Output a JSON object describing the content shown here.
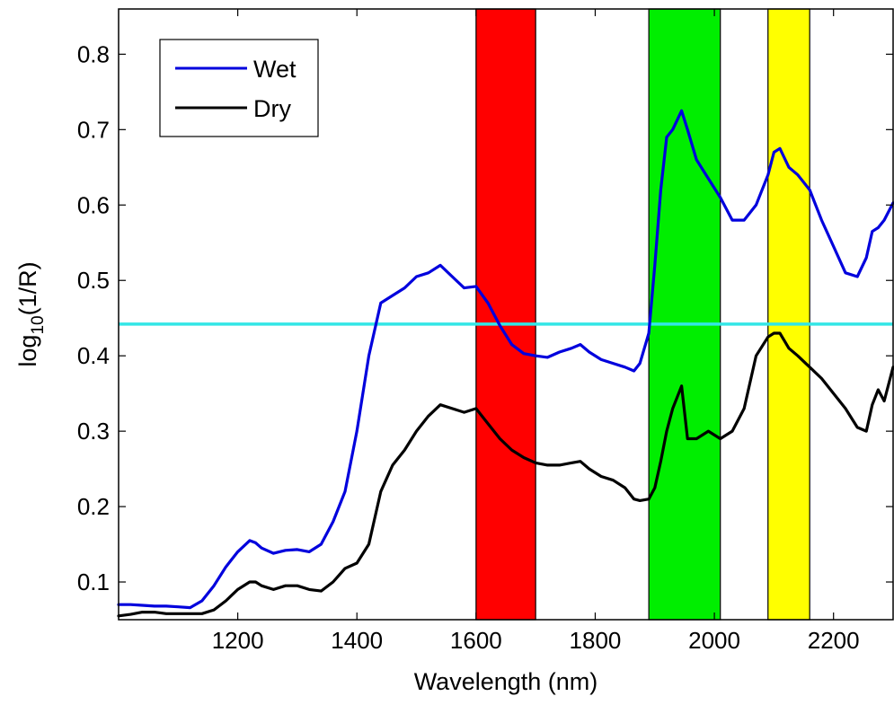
{
  "chart_data": {
    "type": "line",
    "title": "",
    "xlabel": "Wavelength (nm)",
    "ylabel": {
      "prefix": "log",
      "sub": "10",
      "suffix": "(1/R)"
    },
    "xlim": [
      1000,
      2300
    ],
    "ylim": [
      0.05,
      0.86
    ],
    "xticks": [
      1200,
      1400,
      1600,
      1800,
      2000,
      2200
    ],
    "xtick_labels": [
      "1200",
      "1400",
      "1600",
      "1800",
      "2000",
      "2200"
    ],
    "yticks": [
      0.1,
      0.2,
      0.3,
      0.4,
      0.5,
      0.6,
      0.7,
      0.8
    ],
    "ytick_labels": [
      "0.1",
      "0.2",
      "0.3",
      "0.4",
      "0.5",
      "0.6",
      "0.7",
      "0.8"
    ],
    "grid": false,
    "legend_position": "top-left",
    "bands": [
      {
        "x_start": 1600,
        "x_end": 1700,
        "color": "#ff0000"
      },
      {
        "x_start": 1890,
        "x_end": 2010,
        "color": "#00ee00"
      },
      {
        "x_start": 2090,
        "x_end": 2160,
        "color": "#ffff00"
      }
    ],
    "threshold": {
      "y": 0.442,
      "color": "#33e6e6"
    },
    "series": [
      {
        "name": "Wet",
        "color": "#0000dd",
        "x": [
          1000,
          1020,
          1040,
          1060,
          1080,
          1100,
          1120,
          1140,
          1160,
          1180,
          1200,
          1220,
          1230,
          1240,
          1260,
          1280,
          1300,
          1320,
          1340,
          1360,
          1380,
          1400,
          1420,
          1440,
          1460,
          1480,
          1500,
          1520,
          1540,
          1560,
          1580,
          1600,
          1620,
          1640,
          1660,
          1680,
          1700,
          1720,
          1740,
          1760,
          1775,
          1790,
          1810,
          1830,
          1850,
          1865,
          1875,
          1890,
          1900,
          1910,
          1920,
          1930,
          1945,
          1955,
          1970,
          1990,
          2010,
          2030,
          2050,
          2070,
          2090,
          2100,
          2110,
          2125,
          2140,
          2160,
          2180,
          2200,
          2220,
          2240,
          2255,
          2265,
          2275,
          2285,
          2300
        ],
        "y": [
          0.07,
          0.07,
          0.069,
          0.068,
          0.068,
          0.067,
          0.066,
          0.075,
          0.095,
          0.12,
          0.14,
          0.155,
          0.152,
          0.145,
          0.138,
          0.142,
          0.143,
          0.14,
          0.15,
          0.18,
          0.22,
          0.3,
          0.4,
          0.47,
          0.48,
          0.49,
          0.505,
          0.51,
          0.52,
          0.505,
          0.49,
          0.492,
          0.47,
          0.44,
          0.415,
          0.403,
          0.4,
          0.398,
          0.405,
          0.41,
          0.415,
          0.405,
          0.395,
          0.39,
          0.385,
          0.38,
          0.39,
          0.43,
          0.52,
          0.62,
          0.69,
          0.7,
          0.725,
          0.7,
          0.66,
          0.635,
          0.61,
          0.58,
          0.58,
          0.6,
          0.64,
          0.67,
          0.675,
          0.65,
          0.64,
          0.62,
          0.58,
          0.545,
          0.51,
          0.505,
          0.53,
          0.565,
          0.57,
          0.58,
          0.603
        ]
      },
      {
        "name": "Dry",
        "color": "#000000",
        "x": [
          1000,
          1020,
          1040,
          1060,
          1080,
          1100,
          1120,
          1140,
          1160,
          1180,
          1200,
          1220,
          1230,
          1240,
          1260,
          1280,
          1300,
          1320,
          1340,
          1360,
          1380,
          1400,
          1420,
          1440,
          1460,
          1480,
          1500,
          1520,
          1540,
          1560,
          1580,
          1600,
          1620,
          1640,
          1660,
          1680,
          1700,
          1720,
          1740,
          1760,
          1775,
          1790,
          1810,
          1830,
          1850,
          1865,
          1875,
          1890,
          1900,
          1910,
          1920,
          1930,
          1945,
          1955,
          1970,
          1990,
          2010,
          2030,
          2050,
          2070,
          2090,
          2100,
          2110,
          2125,
          2140,
          2160,
          2180,
          2200,
          2220,
          2240,
          2255,
          2265,
          2275,
          2285,
          2300
        ],
        "y": [
          0.055,
          0.057,
          0.06,
          0.06,
          0.058,
          0.058,
          0.058,
          0.058,
          0.063,
          0.075,
          0.09,
          0.1,
          0.1,
          0.095,
          0.09,
          0.095,
          0.095,
          0.09,
          0.088,
          0.1,
          0.118,
          0.125,
          0.15,
          0.22,
          0.255,
          0.275,
          0.3,
          0.32,
          0.335,
          0.33,
          0.325,
          0.33,
          0.31,
          0.29,
          0.275,
          0.265,
          0.258,
          0.255,
          0.255,
          0.258,
          0.26,
          0.25,
          0.24,
          0.235,
          0.225,
          0.21,
          0.208,
          0.21,
          0.225,
          0.26,
          0.3,
          0.33,
          0.36,
          0.29,
          0.29,
          0.3,
          0.29,
          0.3,
          0.33,
          0.4,
          0.425,
          0.43,
          0.43,
          0.41,
          0.4,
          0.385,
          0.37,
          0.35,
          0.33,
          0.305,
          0.3,
          0.335,
          0.355,
          0.34,
          0.385
        ]
      }
    ]
  }
}
